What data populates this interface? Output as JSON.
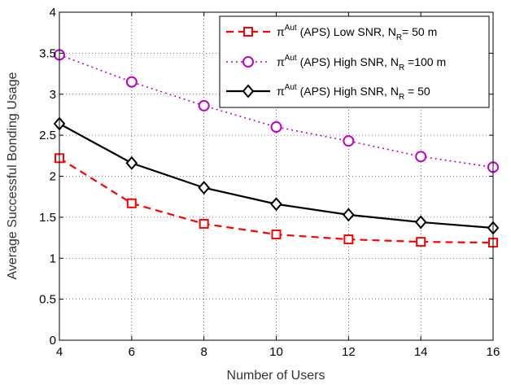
{
  "chart_data": {
    "type": "line",
    "xlabel": "Number of Users",
    "ylabel": "Average Successful Bonding Usage",
    "xlim": [
      4,
      16
    ],
    "ylim": [
      0,
      4
    ],
    "xticks": [
      4,
      6,
      8,
      10,
      12,
      14,
      16
    ],
    "yticks": [
      0,
      0.5,
      1,
      1.5,
      2,
      2.5,
      3,
      3.5,
      4
    ],
    "xtick_labels": [
      "4",
      "6",
      "8",
      "10",
      "12",
      "14",
      "16"
    ],
    "ytick_labels": [
      "0",
      "0.5",
      "1",
      "1.5",
      "2",
      "2.5",
      "3",
      "3.5",
      "4"
    ],
    "grid": true,
    "legend_position": "top-right",
    "x": [
      4,
      6,
      8,
      10,
      12,
      14,
      16
    ],
    "series": [
      {
        "name": "π^Aut (APS) Low SNR, N_R= 50 m",
        "legend_main": "π",
        "legend_sup": "Aut",
        "legend_mid": " (APS) Low SNR, N",
        "legend_sub": "R",
        "legend_end": "= 50 m",
        "values": [
          2.22,
          1.67,
          1.42,
          1.29,
          1.23,
          1.2,
          1.19
        ],
        "color": "#ff0000",
        "line_style": "dashed",
        "marker": "square"
      },
      {
        "name": "π^Aut (APS) High SNR, N_R =100 m",
        "legend_main": "π",
        "legend_sup": "Aut",
        "legend_mid": " (APS) High SNR, N",
        "legend_sub": "R",
        "legend_end": " =100 m",
        "values": [
          3.48,
          3.15,
          2.86,
          2.6,
          2.43,
          2.24,
          2.11
        ],
        "color": "#bf00bf",
        "line_style": "dotted",
        "marker": "circle"
      },
      {
        "name": "π^Aut (APS) High SNR, N_R = 50",
        "legend_main": "π",
        "legend_sup": "Aut",
        "legend_mid": " (APS) High SNR, N",
        "legend_sub": "R",
        "legend_end": " = 50",
        "values": [
          2.64,
          2.16,
          1.86,
          1.66,
          1.53,
          1.44,
          1.37
        ],
        "color": "#000000",
        "line_style": "solid",
        "marker": "diamond"
      }
    ]
  }
}
